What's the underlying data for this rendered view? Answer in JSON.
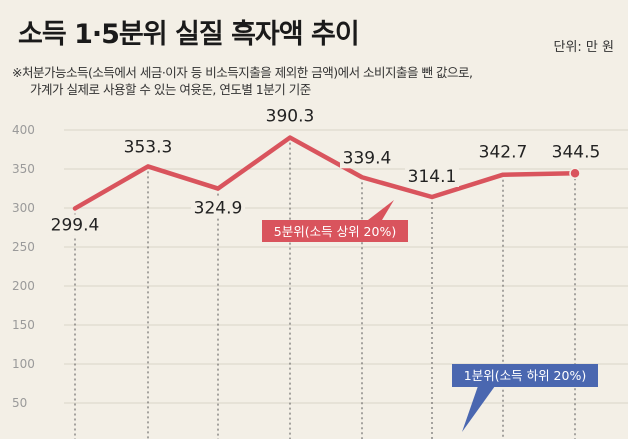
{
  "header": {
    "title": "소득 1·5분위 실질 흑자액 추이",
    "unit": "단위: 만 원"
  },
  "note": {
    "line1": "※처분가능소득(소득에서 세금·이자 등 비소득지출을 제외한 금액)에서 소비지출을 뺀 값으로,",
    "line2": "가계가 실제로 사용할 수 있는 여윳돈, 연도별 1분기 기준"
  },
  "colors": {
    "background": "#f3efe6",
    "series_top": "#d9545d",
    "series_bottom": "#4a67b0"
  },
  "chart_data": {
    "type": "line",
    "title": "소득 1·5분위 실질 흑자액 추이",
    "ylim": [
      0,
      400
    ],
    "y_ticks": [
      50,
      100,
      150,
      200,
      250,
      300,
      350,
      400
    ],
    "grid": true,
    "series": [
      {
        "name": "5분위(소득 상위 20%)",
        "color": "#d9545d",
        "values": [
          299.4,
          353.3,
          324.9,
          390.3,
          339.4,
          314.1,
          342.7,
          344.5
        ],
        "labels": [
          "299.4",
          "353.3",
          "324.9",
          "390.3",
          "339.4",
          "314.1",
          "342.7",
          "344.5"
        ]
      }
    ],
    "callouts": [
      {
        "text": "5분위(소득 상위 20%)",
        "color": "#d9545d"
      },
      {
        "text": "1분위(소득 하위 20%)",
        "color": "#4a67b0"
      }
    ]
  }
}
